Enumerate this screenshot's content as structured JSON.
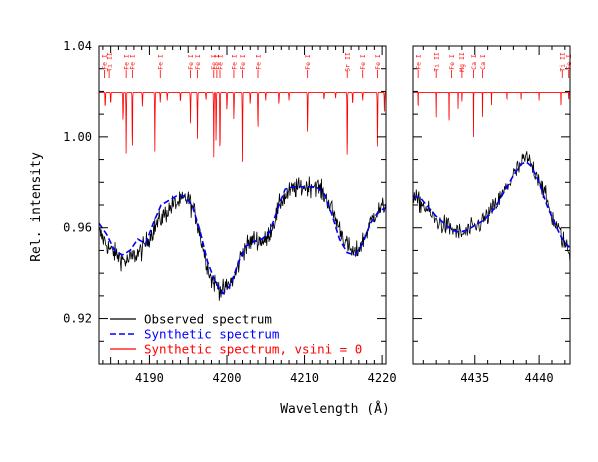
{
  "chart_data": {
    "type": "line",
    "ylabel": "Rel. intensity",
    "xlabel": "Wavelength (Å)",
    "ylim": [
      0.9,
      1.04
    ],
    "y_ticks": [
      0.92,
      0.96,
      1.0,
      1.04
    ],
    "y_tick_labels": [
      "0.92",
      "0.96",
      "1.00",
      "1.04"
    ],
    "legend": {
      "placement": "bottom-left of left panel",
      "entries": [
        {
          "label": "Observed spectrum",
          "color": "#000000",
          "style": "solid"
        },
        {
          "label": "Synthetic spectrum",
          "color": "#0000ff",
          "style": "dashed"
        },
        {
          "label": "Synthetic spectrum, vsini = 0",
          "color": "#ff0000",
          "style": "solid"
        }
      ]
    },
    "panels": [
      {
        "xlim": [
          4183.5,
          4220.5
        ],
        "x_ticks": [
          4190,
          4200,
          4210,
          4220
        ],
        "x_tick_labels": [
          "4190",
          "4200",
          "4210",
          "4220"
        ],
        "observed_trend": [
          [
            4183.5,
            0.958
          ],
          [
            4185,
            0.95
          ],
          [
            4187,
            0.945
          ],
          [
            4189,
            0.95
          ],
          [
            4191,
            0.962
          ],
          [
            4193,
            0.97
          ],
          [
            4195,
            0.973
          ],
          [
            4196,
            0.965
          ],
          [
            4197,
            0.95
          ],
          [
            4198,
            0.937
          ],
          [
            4199.5,
            0.932
          ],
          [
            4201,
            0.938
          ],
          [
            4202,
            0.95
          ],
          [
            4203.5,
            0.955
          ],
          [
            4205,
            0.954
          ],
          [
            4206,
            0.962
          ],
          [
            4207,
            0.972
          ],
          [
            4208.5,
            0.977
          ],
          [
            4210,
            0.978
          ],
          [
            4211.5,
            0.979
          ],
          [
            4213,
            0.972
          ],
          [
            4214.5,
            0.96
          ],
          [
            4215.5,
            0.952
          ],
          [
            4216.5,
            0.948
          ],
          [
            4217.5,
            0.954
          ],
          [
            4219,
            0.966
          ],
          [
            4220.5,
            0.97
          ]
        ],
        "synthetic_broadened": [
          [
            4183.5,
            0.962
          ],
          [
            4184.5,
            0.957
          ],
          [
            4185.5,
            0.95
          ],
          [
            4186.5,
            0.948
          ],
          [
            4187.5,
            0.95
          ],
          [
            4188.5,
            0.955
          ],
          [
            4189.5,
            0.953
          ],
          [
            4190.5,
            0.962
          ],
          [
            4191.5,
            0.97
          ],
          [
            4192.5,
            0.972
          ],
          [
            4193.5,
            0.974
          ],
          [
            4194.5,
            0.974
          ],
          [
            4195.5,
            0.97
          ],
          [
            4196.5,
            0.959
          ],
          [
            4197.5,
            0.945
          ],
          [
            4198.5,
            0.936
          ],
          [
            4199.5,
            0.931
          ],
          [
            4200.5,
            0.935
          ],
          [
            4201.5,
            0.945
          ],
          [
            4202.5,
            0.952
          ],
          [
            4203.5,
            0.954
          ],
          [
            4204.5,
            0.955
          ],
          [
            4205.5,
            0.958
          ],
          [
            4206.5,
            0.968
          ],
          [
            4207.5,
            0.977
          ],
          [
            4208.5,
            0.978
          ],
          [
            4209.5,
            0.978
          ],
          [
            4210.5,
            0.978
          ],
          [
            4211.5,
            0.978
          ],
          [
            4212.5,
            0.975
          ],
          [
            4213.5,
            0.966
          ],
          [
            4214.5,
            0.955
          ],
          [
            4215.5,
            0.949
          ],
          [
            4216.5,
            0.948
          ],
          [
            4217.5,
            0.953
          ],
          [
            4218.5,
            0.962
          ],
          [
            4219.5,
            0.967
          ],
          [
            4220.5,
            0.969
          ]
        ],
        "synthetic_unbroadened": {
          "continuum": 1.0195,
          "lines": [
            [
              4184.3,
              1.012
            ],
            [
              4185.0,
              1.014
            ],
            [
              4186.6,
              1.005
            ],
            [
              4187.0,
              0.992
            ],
            [
              4187.8,
              0.991
            ],
            [
              4189.1,
              1.013
            ],
            [
              4190.7,
              0.993
            ],
            [
              4191.4,
              1.015
            ],
            [
              4192.3,
              1.016
            ],
            [
              4194.0,
              1.015
            ],
            [
              4195.3,
              1.006
            ],
            [
              4196.2,
              0.999
            ],
            [
              4197.3,
              1.016
            ],
            [
              4198.3,
              0.991
            ],
            [
              4198.6,
              0.996
            ],
            [
              4199.1,
              0.989
            ],
            [
              4200.0,
              1.011
            ],
            [
              4200.9,
              1.007
            ],
            [
              4202.0,
              0.989
            ],
            [
              4203.0,
              1.014
            ],
            [
              4204.0,
              1.002
            ],
            [
              4205.0,
              1.016
            ],
            [
              4206.7,
              1.014
            ],
            [
              4208.0,
              1.016
            ],
            [
              4210.4,
              1.0
            ],
            [
              4212.5,
              1.016
            ],
            [
              4214.0,
              1.017
            ],
            [
              4215.5,
              0.987
            ],
            [
              4216.2,
              1.014
            ],
            [
              4217.5,
              1.016
            ],
            [
              4219.4,
              0.994
            ],
            [
              4220.3,
              1.011
            ]
          ]
        },
        "line_labels": [
          {
            "x": 4184.2,
            "text": "Fe I"
          },
          {
            "x": 4184.8,
            "text": "Ti II"
          },
          {
            "x": 4187.0,
            "text": "Fe I"
          },
          {
            "x": 4187.8,
            "text": "Fe I"
          },
          {
            "x": 4191.4,
            "text": "Fe I"
          },
          {
            "x": 4195.3,
            "text": "Fe I"
          },
          {
            "x": 4196.2,
            "text": "Fe I"
          },
          {
            "x": 4198.3,
            "text": "Fe I"
          },
          {
            "x": 4198.7,
            "text": "Fe I"
          },
          {
            "x": 4199.1,
            "text": "Fe I"
          },
          {
            "x": 4200.9,
            "text": "Fe I"
          },
          {
            "x": 4202.0,
            "text": "Fe I"
          },
          {
            "x": 4204.0,
            "text": "Fe I"
          },
          {
            "x": 4210.4,
            "text": "Fe I"
          },
          {
            "x": 4215.5,
            "text": "Sr II"
          },
          {
            "x": 4217.5,
            "text": "Fe I"
          },
          {
            "x": 4219.4,
            "text": "Fe I"
          }
        ]
      },
      {
        "xlim": [
          4430.2,
          4442.4
        ],
        "x_ticks": [
          4435,
          4440
        ],
        "x_tick_labels": [
          "4435",
          "4440"
        ],
        "observed_trend": [
          [
            4430.2,
            0.973
          ],
          [
            4431,
            0.97
          ],
          [
            4432,
            0.963
          ],
          [
            4433,
            0.96
          ],
          [
            4434,
            0.957
          ],
          [
            4435,
            0.96
          ],
          [
            4436,
            0.965
          ],
          [
            4437,
            0.973
          ],
          [
            4438,
            0.983
          ],
          [
            4439,
            0.991
          ],
          [
            4440,
            0.982
          ],
          [
            4441,
            0.965
          ],
          [
            4442,
            0.953
          ],
          [
            4442.4,
            0.948
          ]
        ],
        "synthetic_broadened": [
          [
            4430.2,
            0.974
          ],
          [
            4430.8,
            0.973
          ],
          [
            4431.4,
            0.969
          ],
          [
            4432.0,
            0.965
          ],
          [
            4432.6,
            0.962
          ],
          [
            4433.2,
            0.959
          ],
          [
            4433.8,
            0.958
          ],
          [
            4434.4,
            0.959
          ],
          [
            4435.0,
            0.961
          ],
          [
            4435.6,
            0.963
          ],
          [
            4436.2,
            0.966
          ],
          [
            4436.8,
            0.971
          ],
          [
            4437.4,
            0.977
          ],
          [
            4438.0,
            0.983
          ],
          [
            4438.6,
            0.988
          ],
          [
            4439.0,
            0.989
          ],
          [
            4439.4,
            0.987
          ],
          [
            4440.0,
            0.98
          ],
          [
            4440.6,
            0.97
          ],
          [
            4441.2,
            0.962
          ],
          [
            4441.8,
            0.955
          ],
          [
            4442.4,
            0.951
          ]
        ],
        "synthetic_unbroadened": {
          "continuum": 1.0195,
          "lines": [
            [
              4430.6,
              1.012
            ],
            [
              4432.0,
              1.008
            ],
            [
              4433.0,
              1.004
            ],
            [
              4433.7,
              1.012
            ],
            [
              4434.0,
              1.015
            ],
            [
              4434.9,
              0.998
            ],
            [
              4435.6,
              1.007
            ],
            [
              4436.3,
              1.014
            ],
            [
              4437.5,
              1.016
            ],
            [
              4438.6,
              1.016
            ],
            [
              4440.0,
              1.016
            ],
            [
              4441.7,
              1.013
            ],
            [
              4442.3,
              1.016
            ]
          ]
        },
        "line_labels": [
          {
            "x": 4430.6,
            "text": "Fe I"
          },
          {
            "x": 4432.0,
            "text": "Ti II"
          },
          {
            "x": 4433.2,
            "text": "Fe I"
          },
          {
            "x": 4434.0,
            "text": "Mg II"
          },
          {
            "x": 4434.9,
            "text": "Ca I"
          },
          {
            "x": 4435.6,
            "text": "Ca I"
          },
          {
            "x": 4441.8,
            "text": "Ti II"
          },
          {
            "x": 4442.3,
            "text": "Fe I"
          }
        ]
      }
    ]
  }
}
